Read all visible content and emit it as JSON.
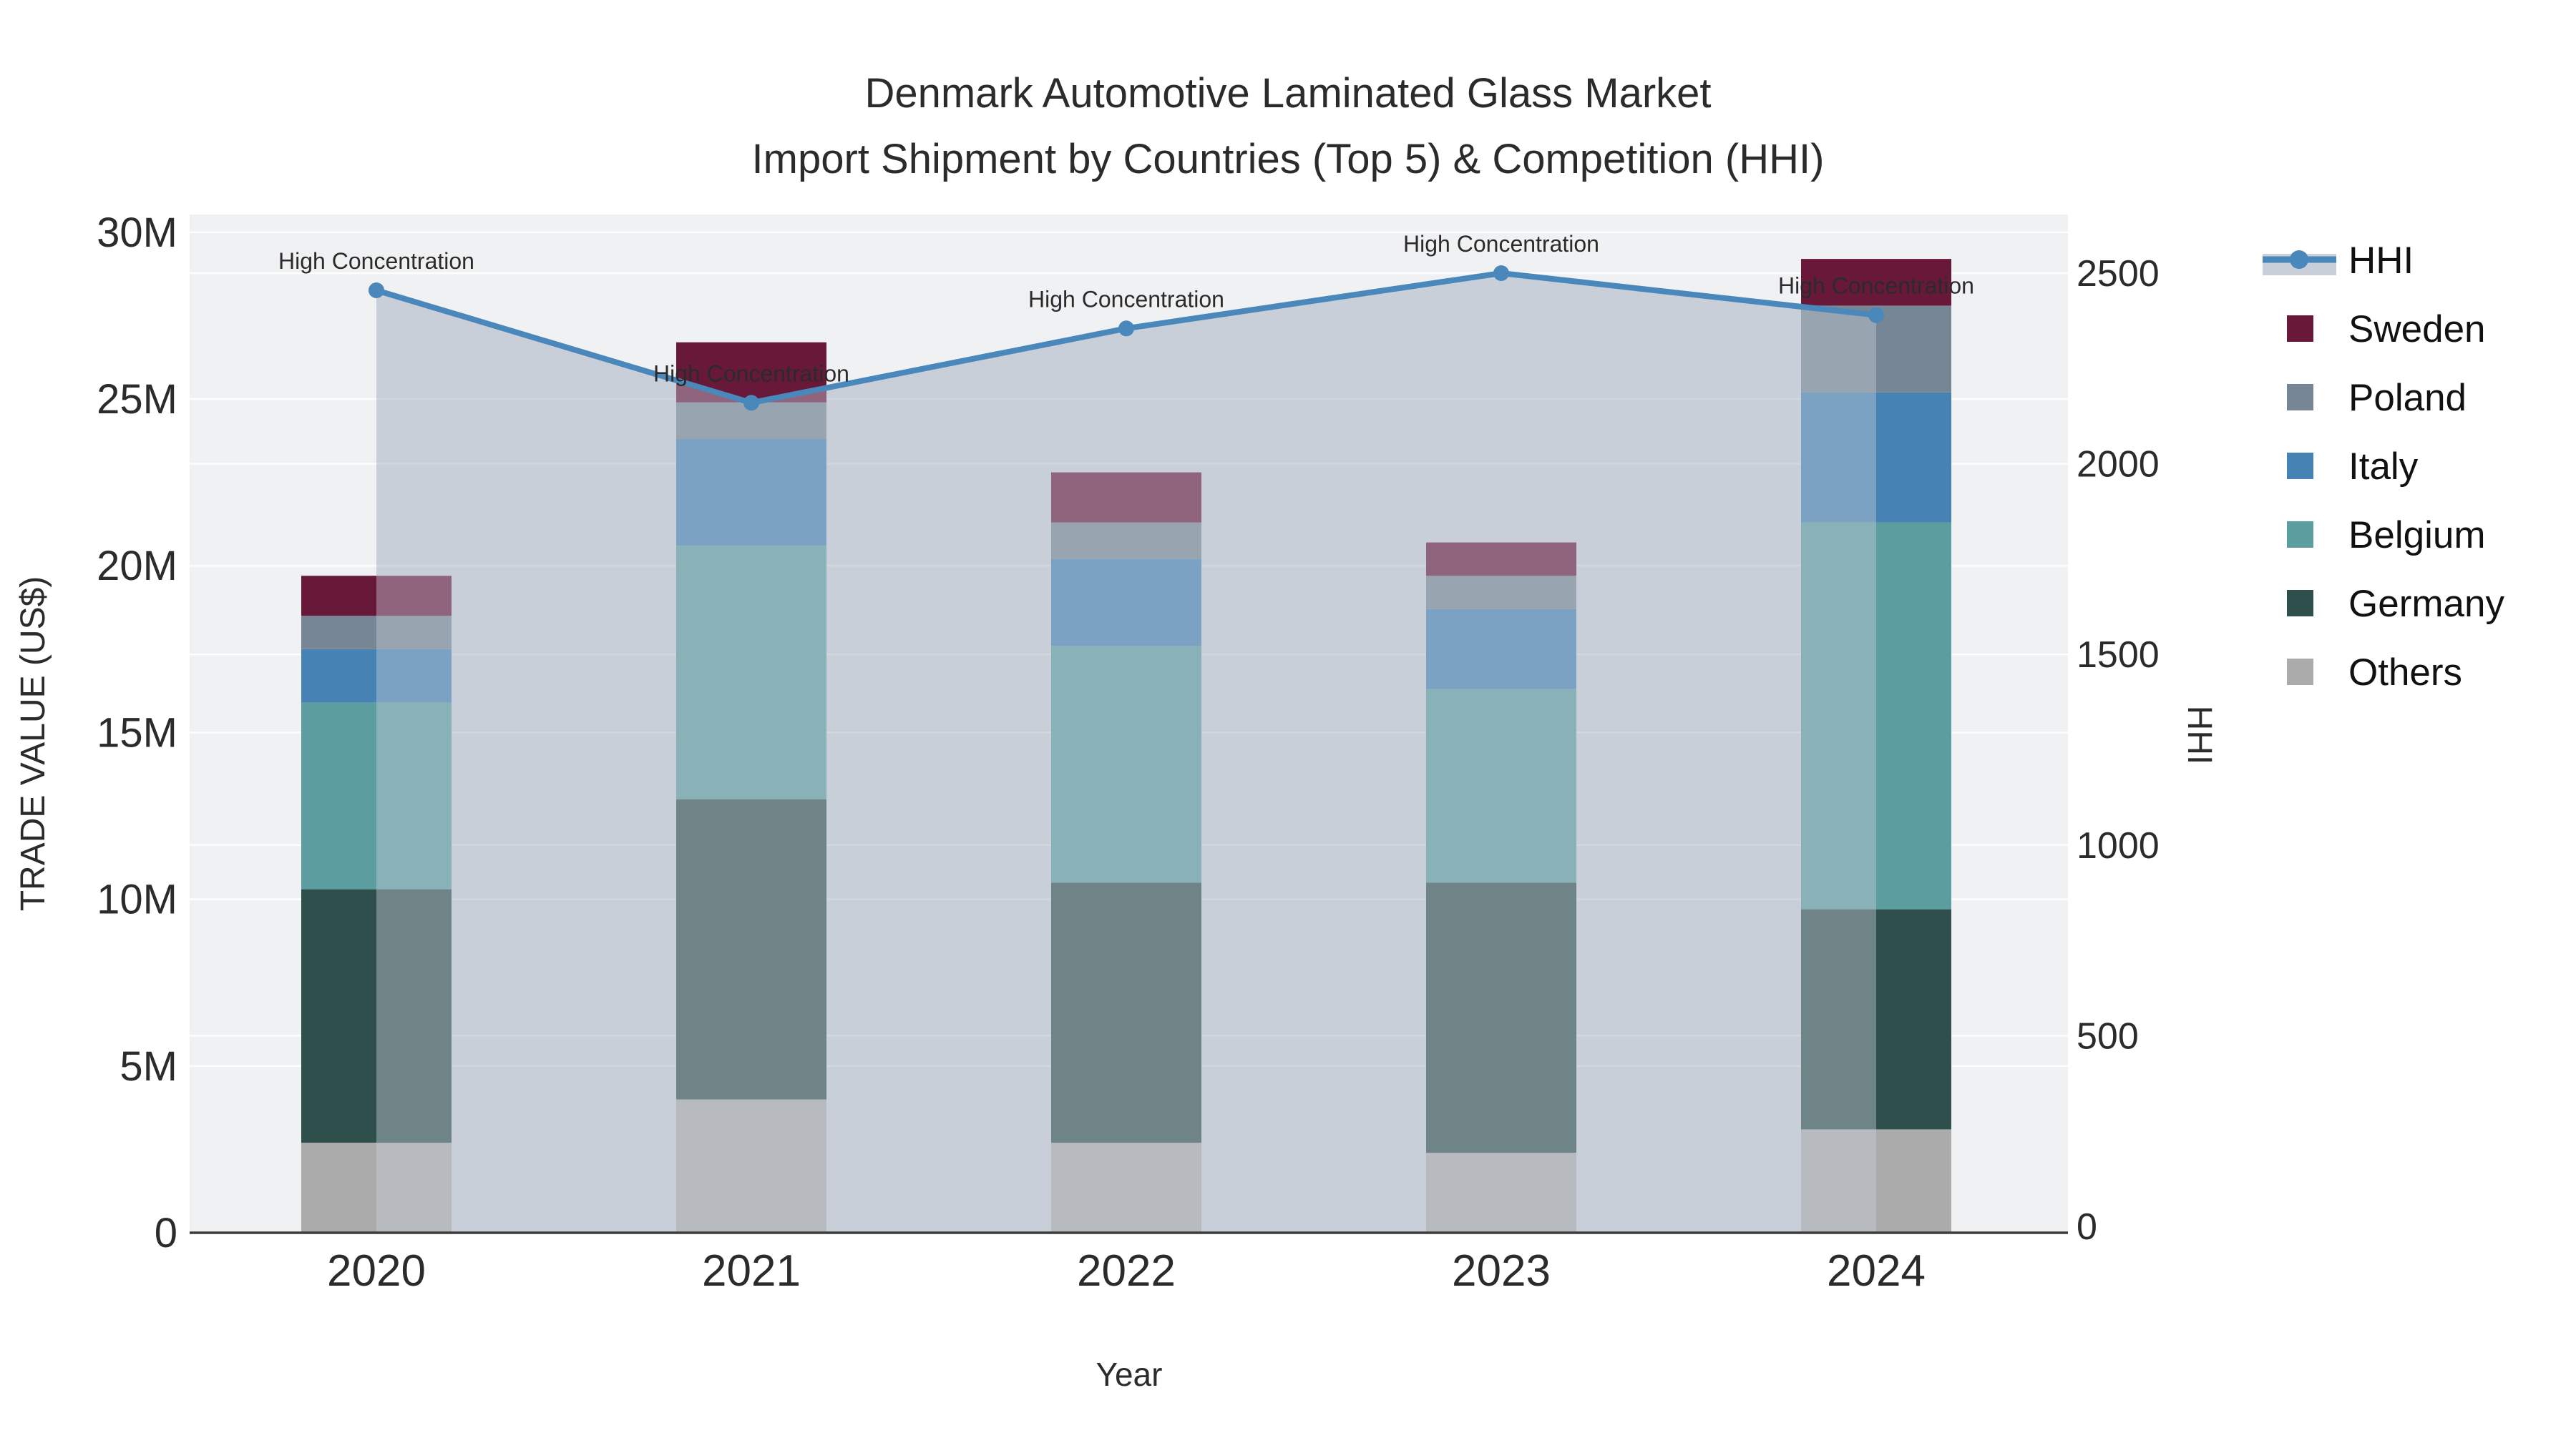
{
  "title": {
    "line1": "Denmark Automotive Laminated Glass Market",
    "line2": "Import Shipment by Countries (Top 5) & Competition (HHI)"
  },
  "axes": {
    "x": {
      "title": "Year",
      "categories": [
        "2020",
        "2021",
        "2022",
        "2023",
        "2024"
      ]
    },
    "y_left": {
      "title": "TRADE VALUE (US$)",
      "tick_labels": [
        "0",
        "5M",
        "10M",
        "15M",
        "20M",
        "25M",
        "30M"
      ],
      "tick_values_musd": [
        0,
        5,
        10,
        15,
        20,
        25,
        30
      ]
    },
    "y_right": {
      "title": "HHI",
      "tick_labels": [
        "0",
        "500",
        "1000",
        "1500",
        "2000",
        "2500"
      ],
      "tick_values": [
        0,
        500,
        1000,
        1500,
        2000,
        2500
      ]
    }
  },
  "legend": {
    "items": [
      {
        "label": "HHI",
        "type": "line"
      },
      {
        "label": "Sweden",
        "type": "swatch",
        "color": "#681839"
      },
      {
        "label": "Poland",
        "type": "swatch",
        "color": "#778694"
      },
      {
        "label": "Italy",
        "type": "swatch",
        "color": "#4682b4"
      },
      {
        "label": "Belgium",
        "type": "swatch",
        "color": "#5c9ea0"
      },
      {
        "label": "Germany",
        "type": "swatch",
        "color": "#2f4f4d"
      },
      {
        "label": "Others",
        "type": "swatch",
        "color": "#ababab"
      }
    ]
  },
  "colors": {
    "plot_bg": "#f0f1f2",
    "grid": "#ffffff",
    "area_fill": "#c8cfd9",
    "hhi_line": "#4a87bb",
    "axis_line": "#3b3b3b",
    "text": "#1f1f1f",
    "tick_text": "#2b2b2b"
  },
  "chart_data": {
    "type": "bar",
    "subtype": "stacked-bars-with-dual-axis-line-area",
    "title": "Denmark Automotive Laminated Glass Market — Import Shipment by Countries (Top 5) & Competition (HHI)",
    "categories": [
      "2020",
      "2021",
      "2022",
      "2023",
      "2024"
    ],
    "bar_unit": "Trade value, millions US$",
    "stack_order_bottom_to_top": [
      "Others",
      "Germany",
      "Belgium",
      "Italy",
      "Poland",
      "Sweden"
    ],
    "series": [
      {
        "name": "Others",
        "color": "#ababab",
        "values_musd": [
          2.7,
          4.0,
          2.7,
          2.4,
          3.1
        ]
      },
      {
        "name": "Germany",
        "color": "#2f4f4d",
        "values_musd": [
          7.6,
          9.0,
          7.8,
          8.1,
          6.6
        ]
      },
      {
        "name": "Belgium",
        "color": "#5c9ea0",
        "values_musd": [
          5.6,
          7.6,
          7.1,
          5.8,
          11.6
        ]
      },
      {
        "name": "Italy",
        "color": "#4682b4",
        "values_musd": [
          1.6,
          3.2,
          2.6,
          2.4,
          3.9
        ]
      },
      {
        "name": "Poland",
        "color": "#778694",
        "values_musd": [
          1.0,
          1.1,
          1.1,
          1.0,
          2.6
        ]
      },
      {
        "name": "Sweden",
        "color": "#681839",
        "values_musd": [
          1.2,
          1.8,
          1.5,
          1.0,
          1.4
        ]
      }
    ],
    "bar_totals_musd": [
      19.7,
      26.7,
      22.8,
      20.7,
      29.2
    ],
    "line_series": {
      "name": "HHI",
      "axis": "right",
      "color": "#4a87bb",
      "area_fill": "#c8cfd9",
      "values": [
        2455,
        2160,
        2355,
        2500,
        2390
      ]
    },
    "annotations": [
      {
        "x": "2020",
        "text": "High Concentration"
      },
      {
        "x": "2021",
        "text": "High Concentration"
      },
      {
        "x": "2022",
        "text": "High Concentration"
      },
      {
        "x": "2023",
        "text": "High Concentration"
      },
      {
        "x": "2024",
        "text": "High Concentration"
      }
    ],
    "xlabel": "Year",
    "ylabel_left": "TRADE VALUE (US$)",
    "ylabel_right": "HHI",
    "ylim_left_musd": [
      0,
      30
    ],
    "ylim_right": [
      0,
      2650
    ],
    "grid": true,
    "legend_position": "right"
  }
}
